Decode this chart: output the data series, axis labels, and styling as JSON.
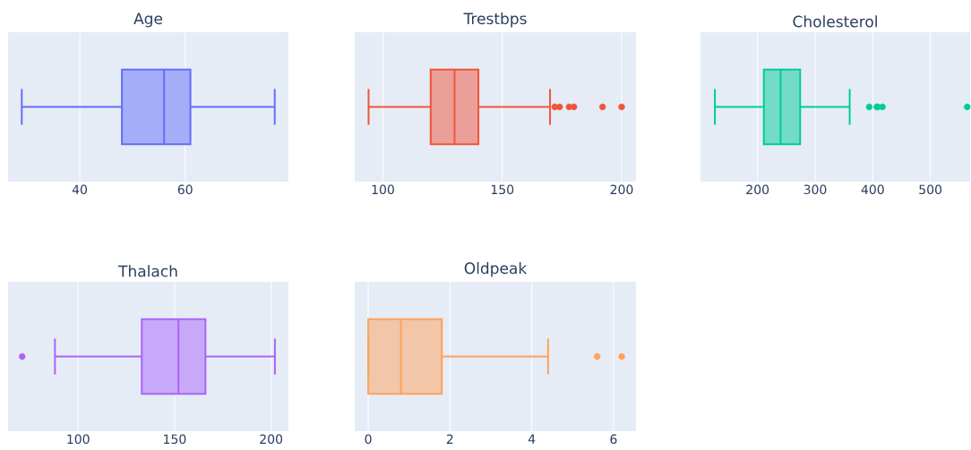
{
  "chart_data": [
    {
      "type": "box",
      "title": "Age",
      "orientation": "horizontal",
      "categories": [
        null
      ],
      "grid": "x",
      "tick_labels": "x",
      "xlim": [
        26.4,
        79.6
      ],
      "xticks": [
        40,
        60
      ],
      "series": [
        {
          "color": "#636efa",
          "boxes": [
            {
              "low": 29,
              "q1": 48,
              "median": 56,
              "q3": 61,
              "high": 77
            }
          ]
        }
      ]
    },
    {
      "type": "box",
      "title": "Trestbps",
      "orientation": "horizontal",
      "categories": [
        null
      ],
      "grid": "x",
      "tick_labels": "x",
      "xlim": [
        88.2,
        206
      ],
      "xticks": [
        100,
        150,
        200
      ],
      "series": [
        {
          "color": "#ef553b",
          "boxes": [
            {
              "low": 94,
              "q1": 120,
              "median": 130,
              "q3": 140,
              "high": 170,
              "outliers": [
                172,
                174,
                178,
                180,
                192,
                200
              ]
            }
          ]
        }
      ]
    },
    {
      "type": "box",
      "title": "Cholesterol",
      "orientation": "horizontal",
      "categories": [
        null
      ],
      "grid": "x",
      "tick_labels": "x",
      "xlim": [
        101,
        569
      ],
      "xticks": [
        200,
        300,
        400,
        500
      ],
      "series": [
        {
          "color": "#00cc96",
          "boxes": [
            {
              "low": 126,
              "q1": 211,
              "median": 240,
              "q3": 274,
              "high": 360,
              "outliers": [
                394,
                407,
                409,
                417,
                564
              ]
            }
          ]
        }
      ]
    },
    {
      "type": "box",
      "title": "Thalach",
      "orientation": "horizontal",
      "categories": [
        null
      ],
      "grid": "x",
      "tick_labels": "x",
      "xlim": [
        63.7,
        209
      ],
      "xticks": [
        100,
        150,
        200
      ],
      "series": [
        {
          "color": "#ab63fa",
          "boxes": [
            {
              "low": 88,
              "q1": 133,
              "median": 152,
              "q3": 166,
              "high": 202,
              "outliers": [
                71
              ]
            }
          ]
        }
      ]
    },
    {
      "type": "box",
      "title": "Oldpeak",
      "orientation": "horizontal",
      "categories": [
        null
      ],
      "grid": "x",
      "tick_labels": "x",
      "xlim": [
        -0.33,
        6.55
      ],
      "xticks": [
        0,
        2,
        4,
        6
      ],
      "series": [
        {
          "color": "#ffa15a",
          "boxes": [
            {
              "low": 0,
              "q1": 0,
              "median": 0.8,
              "q3": 1.8,
              "high": 4.4,
              "outliers": [
                5.6,
                6.2
              ]
            }
          ]
        }
      ]
    }
  ]
}
